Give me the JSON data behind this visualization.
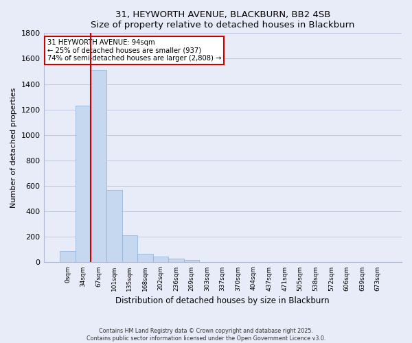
{
  "title": "31, HEYWORTH AVENUE, BLACKBURN, BB2 4SB",
  "subtitle": "Size of property relative to detached houses in Blackburn",
  "xlabel": "Distribution of detached houses by size in Blackburn",
  "ylabel": "Number of detached properties",
  "bar_labels": [
    "0sqm",
    "34sqm",
    "67sqm",
    "101sqm",
    "135sqm",
    "168sqm",
    "202sqm",
    "236sqm",
    "269sqm",
    "303sqm",
    "337sqm",
    "370sqm",
    "404sqm",
    "437sqm",
    "471sqm",
    "505sqm",
    "538sqm",
    "572sqm",
    "606sqm",
    "639sqm",
    "673sqm"
  ],
  "bar_values": [
    90,
    1230,
    1510,
    570,
    210,
    65,
    45,
    30,
    20,
    0,
    0,
    5,
    0,
    0,
    0,
    0,
    0,
    0,
    0,
    0,
    0
  ],
  "bar_color": "#c5d8f0",
  "bar_edge_color": "#8ab0d8",
  "vline_color": "#cc0000",
  "vline_x_index": 2,
  "ylim": [
    0,
    1800
  ],
  "yticks": [
    0,
    200,
    400,
    600,
    800,
    1000,
    1200,
    1400,
    1600,
    1800
  ],
  "annotation_title": "31 HEYWORTH AVENUE: 94sqm",
  "annotation_line1": "← 25% of detached houses are smaller (937)",
  "annotation_line2": "74% of semi-detached houses are larger (2,808) →",
  "annotation_box_color": "#ffffff",
  "annotation_box_edge": "#cc0000",
  "footer_line1": "Contains HM Land Registry data © Crown copyright and database right 2025.",
  "footer_line2": "Contains public sector information licensed under the Open Government Licence v3.0.",
  "bg_color": "#e8ecf8",
  "plot_bg_color": "#e8ecf8"
}
